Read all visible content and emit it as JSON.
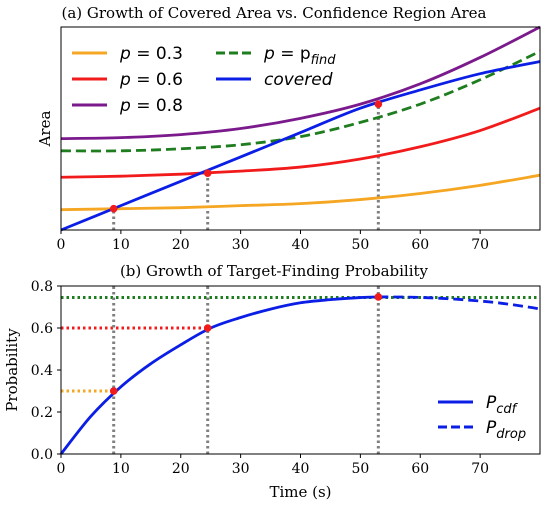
{
  "chart_data": [
    {
      "type": "line",
      "title": "(a) Growth of Covered Area vs. Confidence Region Area",
      "xlabel": "",
      "ylabel": "Area",
      "xlim": [
        0,
        80
      ],
      "x_ticks": [
        0,
        10,
        20,
        30,
        40,
        50,
        60,
        70
      ],
      "y_ticks": [],
      "grid": false,
      "legend": "top-left",
      "series": [
        {
          "name": "p = 0.3",
          "color": "#f5a623",
          "style": "solid",
          "x": [
            0,
            10,
            20,
            30,
            40,
            50,
            60,
            70,
            80
          ],
          "y": [
            0.1,
            0.105,
            0.11,
            0.12,
            0.13,
            0.15,
            0.18,
            0.22,
            0.27
          ]
        },
        {
          "name": "p = 0.6",
          "color": "#f21b1b",
          "style": "solid",
          "x": [
            0,
            10,
            20,
            30,
            40,
            50,
            60,
            70,
            80
          ],
          "y": [
            0.26,
            0.265,
            0.275,
            0.29,
            0.31,
            0.35,
            0.41,
            0.49,
            0.6
          ]
        },
        {
          "name": "p = 0.8",
          "color": "#7b1a8c",
          "style": "solid",
          "x": [
            0,
            10,
            20,
            30,
            40,
            50,
            60,
            70,
            80
          ],
          "y": [
            0.45,
            0.455,
            0.47,
            0.5,
            0.55,
            0.62,
            0.72,
            0.85,
            1.0
          ]
        },
        {
          "name": "p = p_find",
          "color": "#1e7d1e",
          "style": "dashed",
          "x": [
            0,
            10,
            20,
            30,
            40,
            50,
            60,
            70,
            80
          ],
          "y": [
            0.39,
            0.39,
            0.4,
            0.42,
            0.46,
            0.53,
            0.62,
            0.74,
            0.88
          ]
        },
        {
          "name": "covered",
          "color": "#0b1ee6",
          "style": "solid",
          "x": [
            0,
            10,
            20,
            30,
            40,
            50,
            60,
            70,
            80
          ],
          "y": [
            0.0,
            0.12,
            0.24,
            0.36,
            0.48,
            0.6,
            0.69,
            0.77,
            0.83
          ]
        }
      ],
      "markers": [
        {
          "x": 8.8,
          "y": 0.105
        },
        {
          "x": 24.5,
          "y": 0.28
        },
        {
          "x": 53,
          "y": 0.62
        }
      ],
      "vlines": [
        8.8,
        24.5,
        53
      ]
    },
    {
      "type": "line",
      "title": "(b) Growth of Target-Finding Probability",
      "xlabel": "Time (s)",
      "ylabel": "Probability",
      "xlim": [
        0,
        80
      ],
      "ylim": [
        0,
        0.8
      ],
      "x_ticks": [
        0,
        10,
        20,
        30,
        40,
        50,
        60,
        70
      ],
      "y_ticks": [
        "0.0",
        "0.2",
        "0.4",
        "0.6",
        "0.8"
      ],
      "grid": false,
      "legend": "bottom-right",
      "series": [
        {
          "name": "P_cdf",
          "color": "#0b1ee6",
          "style": "solid",
          "x": [
            0,
            5,
            10,
            15,
            20,
            25,
            30,
            35,
            40,
            45,
            50,
            53
          ],
          "y": [
            0.0,
            0.18,
            0.32,
            0.43,
            0.52,
            0.6,
            0.65,
            0.69,
            0.72,
            0.735,
            0.745,
            0.748
          ]
        },
        {
          "name": "P_drop",
          "color": "#0b1ee6",
          "style": "dashed",
          "x": [
            53,
            58,
            63,
            68,
            73,
            78,
            80
          ],
          "y": [
            0.748,
            0.747,
            0.742,
            0.733,
            0.72,
            0.7,
            0.69
          ]
        }
      ],
      "hlines": [
        {
          "y": 0.3,
          "to_x": 8.8,
          "color": "#f5a623"
        },
        {
          "y": 0.6,
          "to_x": 24.5,
          "color": "#f21b1b"
        },
        {
          "y": 0.745,
          "to_x": 80,
          "color": "#1e7d1e"
        }
      ],
      "markers": [
        {
          "x": 8.8,
          "y": 0.3
        },
        {
          "x": 24.5,
          "y": 0.6
        },
        {
          "x": 53,
          "y": 0.748
        }
      ],
      "vlines": [
        8.8,
        24.5,
        53
      ]
    }
  ],
  "legend_a": [
    {
      "base": "p",
      "eq": " = 0.3"
    },
    {
      "base": "p",
      "eq": " = 0.6"
    },
    {
      "base": "p",
      "eq": " = 0.8"
    },
    {
      "base": "p",
      "eq": " = p",
      "sub": "find"
    },
    {
      "base": "covered",
      "eq": ""
    }
  ],
  "legend_b": [
    {
      "base": "P",
      "sub": "cdf"
    },
    {
      "base": "P",
      "sub": "drop"
    }
  ]
}
